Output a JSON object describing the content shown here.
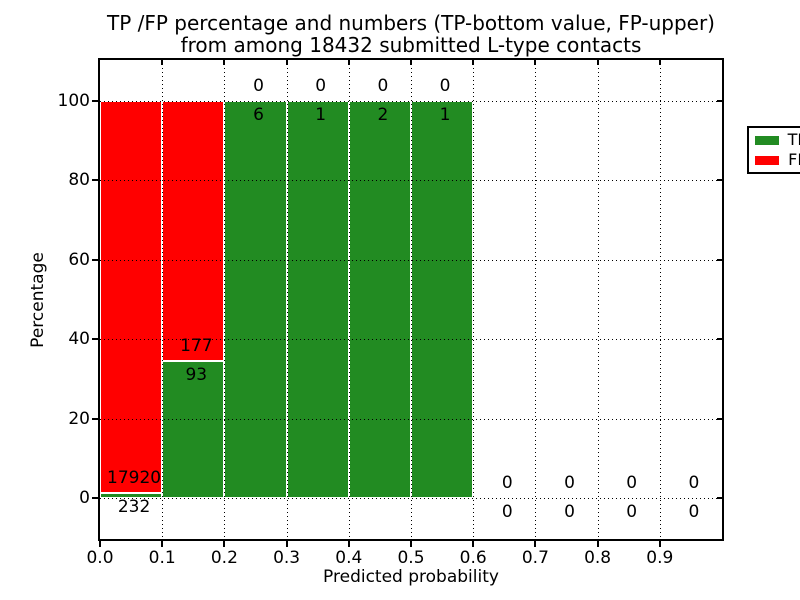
{
  "title": {
    "line1": "TP /FP percentage and numbers (TP-bottom value, FP-upper)",
    "line2": "from among 18432 submitted L-type contacts"
  },
  "axes": {
    "xlabel": "Predicted probability",
    "ylabel": "Percentage"
  },
  "legend": {
    "items": [
      {
        "label": "TP",
        "color": "#228B22"
      },
      {
        "label": "FP",
        "color": "#FF0000"
      }
    ]
  },
  "chart_data": {
    "type": "bar",
    "stacked": true,
    "title": "TP /FP percentage and numbers (TP-bottom value, FP-upper) from among 18432 submitted L-type contacts",
    "xlabel": "Predicted probability",
    "ylabel": "Percentage",
    "xlim": [
      0.0,
      1.0
    ],
    "ylim": [
      -10.3,
      110.3
    ],
    "xticks": [
      "0.0",
      "0.1",
      "0.2",
      "0.3",
      "0.4",
      "0.5",
      "0.6",
      "0.7",
      "0.8",
      "0.9"
    ],
    "yticks": [
      0,
      20,
      40,
      60,
      80,
      100
    ],
    "grid": true,
    "grid_style": "dotted",
    "legend_position": "upper right",
    "bar_edge_color": "#FFFFFF",
    "categories": [
      "0.0-0.1",
      "0.1-0.2",
      "0.2-0.3",
      "0.3-0.4",
      "0.4-0.5",
      "0.5-0.6",
      "0.6-0.7",
      "0.7-0.8",
      "0.8-0.9",
      "0.9-1.0"
    ],
    "series": [
      {
        "name": "TP",
        "color": "#228B22",
        "counts": [
          232,
          93,
          6,
          1,
          2,
          1,
          0,
          0,
          0,
          0
        ],
        "percentages": [
          1.28,
          34.44,
          100,
          100,
          100,
          100,
          0,
          0,
          0,
          0
        ]
      },
      {
        "name": "FP",
        "color": "#FF0000",
        "counts": [
          17920,
          177,
          0,
          0,
          0,
          0,
          0,
          0,
          0,
          0
        ],
        "percentages": [
          98.72,
          65.56,
          0,
          0,
          0,
          0,
          0,
          0,
          0,
          0
        ]
      }
    ]
  }
}
